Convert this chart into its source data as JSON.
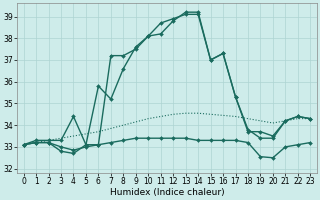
{
  "xlabel": "Humidex (Indice chaleur)",
  "ylabel": "",
  "xlim": [
    -0.5,
    23.5
  ],
  "ylim": [
    31.8,
    39.6
  ],
  "yticks": [
    32,
    33,
    34,
    35,
    36,
    37,
    38,
    39
  ],
  "xticks": [
    0,
    1,
    2,
    3,
    4,
    5,
    6,
    7,
    8,
    9,
    10,
    11,
    12,
    13,
    14,
    15,
    16,
    17,
    18,
    19,
    20,
    21,
    22,
    23
  ],
  "background_color": "#ceecea",
  "grid_color": "#aed4d2",
  "line_color": "#1a6b5e",
  "curves": [
    {
      "x": [
        0,
        1,
        2,
        3,
        4,
        5,
        6,
        7,
        8,
        9,
        10,
        11,
        12,
        13,
        14,
        15,
        16,
        17,
        18,
        19,
        20,
        21,
        22,
        23
      ],
      "y": [
        33.1,
        33.3,
        33.3,
        33.3,
        34.4,
        33.1,
        33.1,
        37.2,
        37.2,
        37.5,
        38.1,
        38.2,
        38.8,
        39.2,
        39.2,
        37.0,
        37.3,
        35.3,
        33.7,
        33.7,
        33.5,
        34.2,
        34.4,
        34.3
      ],
      "marker": "D",
      "markersize": 2.0,
      "linewidth": 1.0,
      "linestyle": "-"
    },
    {
      "x": [
        0,
        1,
        2,
        3,
        4,
        5,
        6,
        7,
        8,
        9,
        10,
        11,
        12,
        13,
        14,
        15,
        16,
        17,
        18,
        19,
        20,
        21,
        22,
        23
      ],
      "y": [
        33.1,
        33.2,
        33.3,
        33.4,
        33.5,
        33.6,
        33.7,
        33.85,
        34.0,
        34.15,
        34.3,
        34.4,
        34.5,
        34.55,
        34.55,
        34.5,
        34.45,
        34.4,
        34.3,
        34.2,
        34.1,
        34.2,
        34.3,
        34.3
      ],
      "marker": null,
      "markersize": 0,
      "linewidth": 0.8,
      "linestyle": ":"
    },
    {
      "x": [
        0,
        1,
        2,
        3,
        4,
        5,
        6,
        7,
        8,
        9,
        10,
        11,
        12,
        13,
        14,
        15,
        16,
        17,
        18,
        19,
        20,
        21,
        22,
        23
      ],
      "y": [
        33.1,
        33.2,
        33.2,
        32.8,
        32.7,
        33.1,
        35.8,
        35.2,
        36.6,
        37.6,
        38.1,
        38.7,
        38.9,
        39.1,
        39.1,
        37.0,
        37.3,
        35.3,
        33.8,
        33.4,
        33.4,
        34.2,
        34.4,
        34.3
      ],
      "marker": "D",
      "markersize": 2.0,
      "linewidth": 1.0,
      "linestyle": "-"
    },
    {
      "x": [
        0,
        1,
        2,
        3,
        4,
        5,
        6,
        7,
        8,
        9,
        10,
        11,
        12,
        13,
        14,
        15,
        16,
        17,
        18,
        19,
        20,
        21,
        22,
        23
      ],
      "y": [
        33.1,
        33.2,
        33.2,
        33.0,
        32.85,
        33.0,
        33.1,
        33.2,
        33.3,
        33.4,
        33.4,
        33.4,
        33.4,
        33.4,
        33.3,
        33.3,
        33.3,
        33.3,
        33.2,
        32.55,
        32.5,
        33.0,
        33.1,
        33.2
      ],
      "marker": "D",
      "markersize": 2.0,
      "linewidth": 1.0,
      "linestyle": "-"
    }
  ]
}
